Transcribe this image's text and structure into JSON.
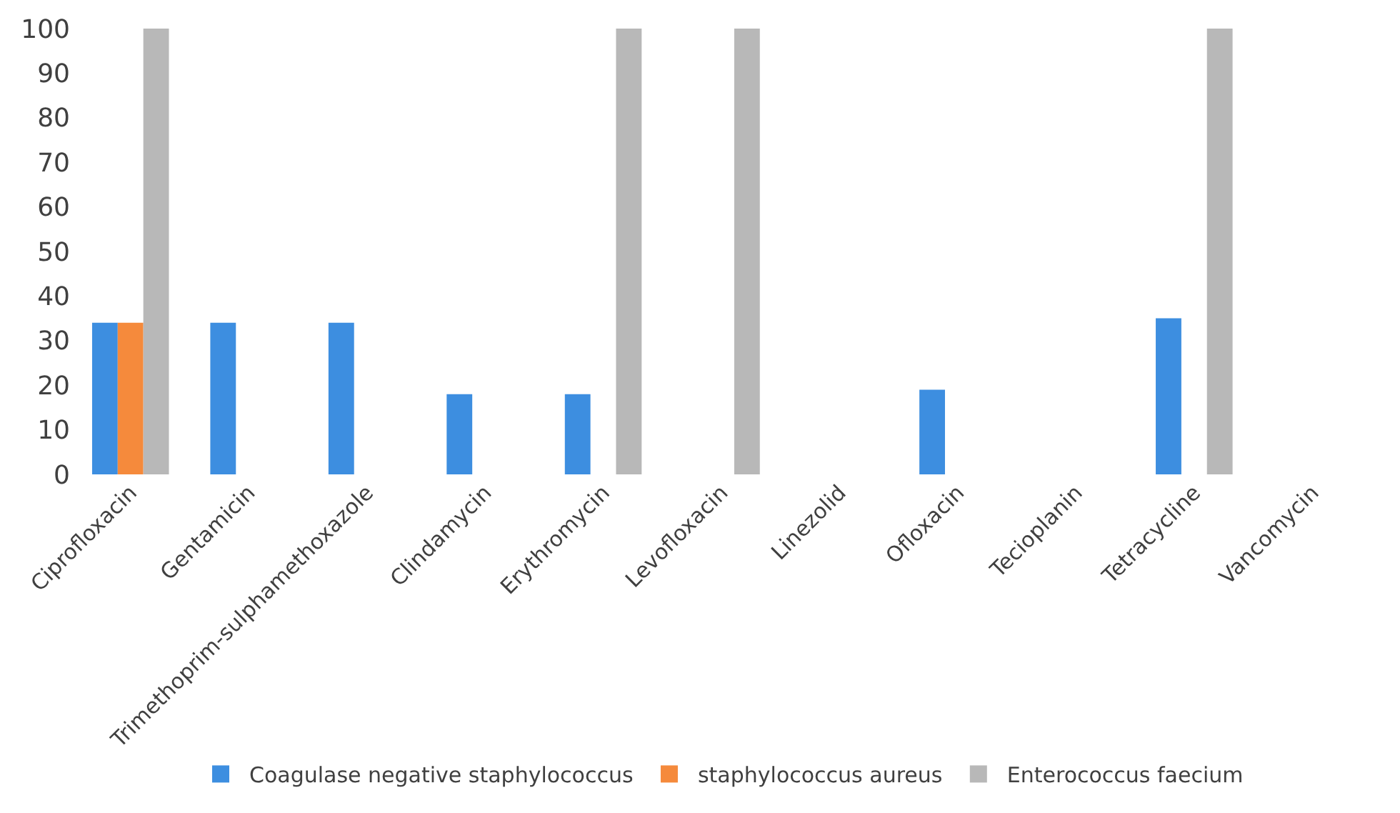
{
  "chart_data": {
    "type": "bar",
    "categories": [
      "Ciprofloxacin",
      "Gentamicin",
      "Trimethoprim-sulphamethoxazole",
      "Clindamycin",
      "Erythromycin",
      "Levofloxacin",
      "Linezolid",
      "Ofloxacin",
      "Tecioplanin",
      "Tetracycline",
      "Vancomycin"
    ],
    "series": [
      {
        "name": "Coagulase negative staphylococcus",
        "color": "#3d8ee0",
        "values": [
          34,
          34,
          34,
          18,
          18,
          0,
          0,
          19,
          0,
          35,
          0
        ]
      },
      {
        "name": "staphylococcus aureus",
        "color": "#f58a3c",
        "values": [
          34,
          0,
          0,
          0,
          0,
          0,
          0,
          0,
          0,
          0,
          0
        ]
      },
      {
        "name": "Enterococcus faecium",
        "color": "#b8b8b8",
        "values": [
          100,
          0,
          null,
          null,
          100,
          100,
          0,
          null,
          0,
          100,
          0
        ]
      }
    ],
    "ylim": [
      0,
      100
    ],
    "yticks": [
      0,
      10,
      20,
      30,
      40,
      50,
      60,
      70,
      80,
      90,
      100
    ],
    "legend": "bottom"
  }
}
